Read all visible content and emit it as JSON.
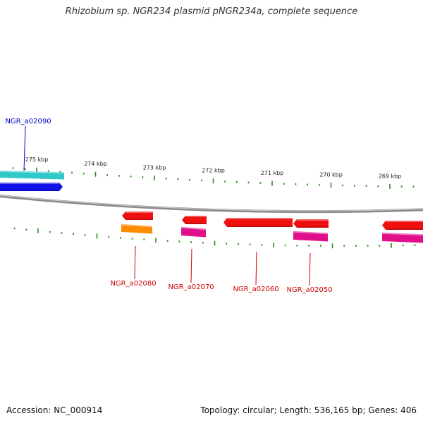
{
  "title": "Rhizobium sp. NGR234 plasmid pNGR234a, complete sequence",
  "footer": {
    "accession": "Accession: NC_000914",
    "stats": "Topology: circular; Length: 536,165 bp; Genes: 406"
  },
  "colors": {
    "backbone": "#8a8a8a",
    "tick": "#2e8b22",
    "label_blue": "#0000cc",
    "label_red": "#cc0000",
    "cyan": "#2ec8c8",
    "blue": "#1010e8",
    "red": "#f01010",
    "orange": "#ff8c00",
    "magenta": "#e0108a"
  },
  "scale": {
    "unit": "kbp",
    "ticks": [
      {
        "kbp": 275,
        "label": "275 kbp"
      },
      {
        "kbp": 274,
        "label": "274 kbp"
      },
      {
        "kbp": 273,
        "label": "273 kbp"
      },
      {
        "kbp": 272,
        "label": "272 kbp"
      },
      {
        "kbp": 271,
        "label": "271 kbp"
      },
      {
        "kbp": 270,
        "label": "270 kbp"
      },
      {
        "kbp": 269,
        "label": "269 kbp"
      }
    ]
  },
  "labels": [
    {
      "text": "NGR_a02090",
      "color": "label_blue"
    },
    {
      "text": "NGR_a02080",
      "color": "label_red"
    },
    {
      "text": "NGR_a02070",
      "color": "label_red"
    },
    {
      "text": "NGR_a02060",
      "color": "label_red"
    },
    {
      "text": "NGR_a02050",
      "color": "label_red"
    }
  ]
}
